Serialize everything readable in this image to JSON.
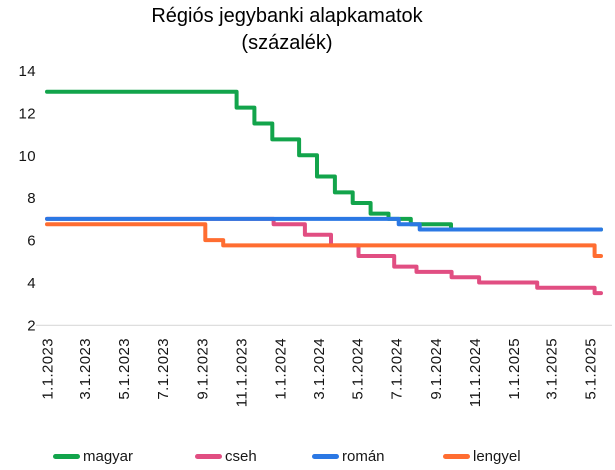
{
  "title": {
    "line1": "Régiós jegybanki alapkamatok",
    "line2": "(százalék)"
  },
  "chart_data": {
    "type": "line",
    "title": "Régiós jegybanki alapkamatok (százalék)",
    "subtitle": "(százalék)",
    "line_style": "stepped",
    "grid": false,
    "legend_position": "bottom",
    "background_color": "#ffffff",
    "text_color": "#141414",
    "axis_line_color": "#dedede",
    "x_axis": {
      "type": "date",
      "start": "2023-01-01",
      "end": "2025-05-18",
      "tick_labels": [
        "1.1.2023",
        "3.1.2023",
        "5.1.2023",
        "7.1.2023",
        "9.1.2023",
        "11.1.2023",
        "1.1.2024",
        "3.1.2024",
        "5.1.2024",
        "7.1.2024",
        "9.1.2024",
        "11.1.2024",
        "1.1.2025",
        "3.1.2025",
        "5.1.2025"
      ],
      "tick_dates": [
        "2023-01-01",
        "2023-03-01",
        "2023-05-01",
        "2023-07-01",
        "2023-09-01",
        "2023-11-01",
        "2024-01-01",
        "2024-03-01",
        "2024-05-01",
        "2024-07-01",
        "2024-09-01",
        "2024-11-01",
        "2025-01-01",
        "2025-03-01",
        "2025-05-01"
      ]
    },
    "y_axis": {
      "min": 2,
      "max": 14,
      "ticks": [
        2,
        4,
        6,
        8,
        10,
        12,
        14
      ]
    },
    "series": [
      {
        "name": "magyar",
        "color": "#12A44B",
        "unit": "percent",
        "steps": [
          [
            "2023-01-01",
            13.0
          ],
          [
            "2023-10-25",
            12.25
          ],
          [
            "2023-11-22",
            11.5
          ],
          [
            "2023-12-20",
            10.75
          ],
          [
            "2024-01-31",
            10.0
          ],
          [
            "2024-02-28",
            9.0
          ],
          [
            "2024-03-27",
            8.25
          ],
          [
            "2024-04-24",
            7.75
          ],
          [
            "2024-05-22",
            7.25
          ],
          [
            "2024-06-19",
            7.0
          ],
          [
            "2024-07-24",
            6.75
          ],
          [
            "2024-09-25",
            6.5
          ]
        ]
      },
      {
        "name": "cseh",
        "color": "#E14E82",
        "unit": "percent",
        "steps": [
          [
            "2023-01-01",
            7.0
          ],
          [
            "2023-12-22",
            6.75
          ],
          [
            "2024-02-09",
            6.25
          ],
          [
            "2024-03-21",
            5.75
          ],
          [
            "2024-05-03",
            5.25
          ],
          [
            "2024-06-28",
            4.75
          ],
          [
            "2024-08-02",
            4.5
          ],
          [
            "2024-09-26",
            4.25
          ],
          [
            "2024-11-08",
            4.0
          ],
          [
            "2025-02-07",
            3.75
          ],
          [
            "2025-05-08",
            3.5
          ]
        ]
      },
      {
        "name": "román",
        "color": "#2B78E4",
        "unit": "percent",
        "steps": [
          [
            "2023-01-01",
            7.0
          ],
          [
            "2024-07-05",
            6.75
          ],
          [
            "2024-08-07",
            6.5
          ]
        ]
      },
      {
        "name": "lengyel",
        "color": "#FF6D31",
        "unit": "percent",
        "steps": [
          [
            "2023-01-01",
            6.75
          ],
          [
            "2023-09-06",
            6.0
          ],
          [
            "2023-10-04",
            5.75
          ],
          [
            "2025-05-08",
            5.25
          ]
        ]
      }
    ]
  }
}
